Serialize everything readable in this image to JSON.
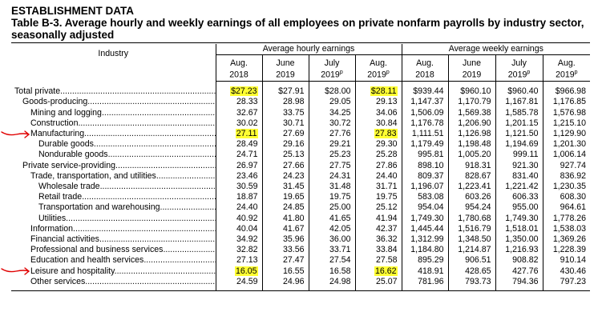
{
  "header": {
    "section_title": "ESTABLISHMENT DATA",
    "table_title": "Table B-3. Average hourly and weekly earnings of all employees on private nonfarm payrolls by industry sector, seasonally adjusted"
  },
  "table": {
    "industry_header": "Industry",
    "group_hourly": "Average hourly earnings",
    "group_weekly": "Average weekly earnings",
    "columns": [
      {
        "line1": "Aug.",
        "line2": "2018",
        "sup": ""
      },
      {
        "line1": "June",
        "line2": "2019",
        "sup": ""
      },
      {
        "line1": "July",
        "line2": "2019",
        "sup": "p"
      },
      {
        "line1": "Aug.",
        "line2": "2019",
        "sup": "p"
      },
      {
        "line1": "Aug.",
        "line2": "2018",
        "sup": ""
      },
      {
        "line1": "June",
        "line2": "2019",
        "sup": ""
      },
      {
        "line1": "July",
        "line2": "2019",
        "sup": "p"
      },
      {
        "line1": "Aug.",
        "line2": "2019",
        "sup": "p"
      }
    ],
    "rows": [
      {
        "label": "Total private",
        "indent": 0,
        "values": [
          "$27.23",
          "$27.91",
          "$28.00",
          "$28.11",
          "$939.44",
          "$960.10",
          "$960.40",
          "$966.98"
        ],
        "highlight": [
          0,
          3
        ]
      },
      {
        "label": "Goods-producing",
        "indent": 1,
        "values": [
          "28.33",
          "28.98",
          "29.05",
          "29.13",
          "1,147.37",
          "1,170.79",
          "1,167.81",
          "1,176.85"
        ],
        "highlight": []
      },
      {
        "label": "Mining and logging",
        "indent": 2,
        "values": [
          "32.67",
          "33.75",
          "34.25",
          "34.06",
          "1,506.09",
          "1,569.38",
          "1,585.78",
          "1,576.98"
        ],
        "highlight": []
      },
      {
        "label": "Construction",
        "indent": 2,
        "values": [
          "30.02",
          "30.71",
          "30.72",
          "30.84",
          "1,176.78",
          "1,206.90",
          "1,201.15",
          "1,215.10"
        ],
        "highlight": []
      },
      {
        "label": "Manufacturing",
        "indent": 2,
        "values": [
          "27.11",
          "27.69",
          "27.76",
          "27.83",
          "1,111.51",
          "1,126.98",
          "1,121.50",
          "1,129.90"
        ],
        "highlight": [
          0,
          3
        ],
        "arrow": true
      },
      {
        "label": "Durable goods",
        "indent": 3,
        "values": [
          "28.49",
          "29.16",
          "29.21",
          "29.30",
          "1,179.49",
          "1,198.48",
          "1,194.69",
          "1,201.30"
        ],
        "highlight": []
      },
      {
        "label": "Nondurable goods",
        "indent": 3,
        "values": [
          "24.71",
          "25.13",
          "25.23",
          "25.28",
          "995.81",
          "1,005.20",
          "999.11",
          "1,006.14"
        ],
        "highlight": []
      },
      {
        "label": "Private service-providing",
        "indent": 1,
        "values": [
          "26.97",
          "27.66",
          "27.75",
          "27.86",
          "898.10",
          "918.31",
          "921.30",
          "927.74"
        ],
        "highlight": []
      },
      {
        "label": "Trade, transportation, and utilities",
        "indent": 2,
        "values": [
          "23.46",
          "24.23",
          "24.31",
          "24.40",
          "809.37",
          "828.67",
          "831.40",
          "836.92"
        ],
        "highlight": []
      },
      {
        "label": "Wholesale trade",
        "indent": 3,
        "values": [
          "30.59",
          "31.45",
          "31.48",
          "31.71",
          "1,196.07",
          "1,223.41",
          "1,221.42",
          "1,230.35"
        ],
        "highlight": []
      },
      {
        "label": "Retail trade",
        "indent": 3,
        "values": [
          "18.87",
          "19.65",
          "19.75",
          "19.75",
          "583.08",
          "603.26",
          "606.33",
          "608.30"
        ],
        "highlight": []
      },
      {
        "label": "Transportation and warehousing",
        "indent": 3,
        "values": [
          "24.40",
          "24.85",
          "25.00",
          "25.12",
          "954.04",
          "954.24",
          "955.00",
          "964.61"
        ],
        "highlight": []
      },
      {
        "label": "Utilities",
        "indent": 3,
        "values": [
          "40.92",
          "41.80",
          "41.65",
          "41.94",
          "1,749.30",
          "1,780.68",
          "1,749.30",
          "1,778.26"
        ],
        "highlight": []
      },
      {
        "label": "Information",
        "indent": 2,
        "values": [
          "40.04",
          "41.67",
          "42.05",
          "42.37",
          "1,445.44",
          "1,516.79",
          "1,518.01",
          "1,538.03"
        ],
        "highlight": []
      },
      {
        "label": "Financial activities",
        "indent": 2,
        "values": [
          "34.92",
          "35.96",
          "36.00",
          "36.32",
          "1,312.99",
          "1,348.50",
          "1,350.00",
          "1,369.26"
        ],
        "highlight": []
      },
      {
        "label": "Professional and business services",
        "indent": 2,
        "values": [
          "32.82",
          "33.56",
          "33.71",
          "33.84",
          "1,184.80",
          "1,214.87",
          "1,216.93",
          "1,228.39"
        ],
        "highlight": []
      },
      {
        "label": "Education and health services",
        "indent": 2,
        "values": [
          "27.13",
          "27.47",
          "27.54",
          "27.58",
          "895.29",
          "906.51",
          "908.82",
          "910.14"
        ],
        "highlight": []
      },
      {
        "label": "Leisure and hospitality",
        "indent": 2,
        "values": [
          "16.05",
          "16.55",
          "16.58",
          "16.62",
          "418.91",
          "428.65",
          "427.76",
          "430.46"
        ],
        "highlight": [
          0,
          3
        ],
        "arrow": true
      },
      {
        "label": "Other services",
        "indent": 2,
        "values": [
          "24.59",
          "24.96",
          "24.98",
          "25.07",
          "781.96",
          "793.73",
          "794.36",
          "797.23"
        ],
        "highlight": []
      }
    ]
  },
  "colors": {
    "highlight": "#ffff33",
    "arrow": "#e00000"
  }
}
